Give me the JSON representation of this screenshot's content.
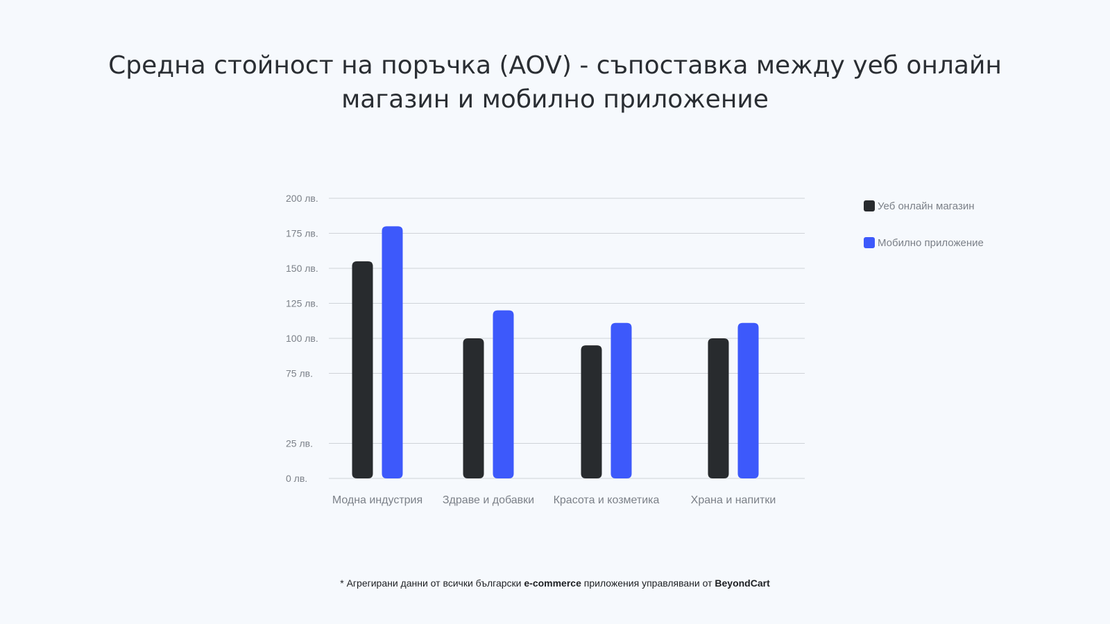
{
  "title_line1": "Средна стойност на поръчка (AOV) - съпоставка между уеб онлайн",
  "title_line2": "магазин и мобилно приложение",
  "footnote": {
    "prefix": "* Агрегирани данни от всички български",
    "brand1": "e-commerce",
    "middle": "приложения управлявани от",
    "brand2": "BeyondCart"
  },
  "colors": {
    "web": "#282b2e",
    "app": "#3d59fb",
    "grid": "#cfd3d8"
  },
  "chart_data": {
    "type": "bar",
    "categories": [
      "Модна индустрия",
      "Здраве и добавки",
      "Красота и козметика",
      "Храна и напитки"
    ],
    "series": [
      {
        "name": "Уеб онлайн магазин",
        "values": [
          155,
          100,
          95,
          100
        ]
      },
      {
        "name": "Мобилно приложение",
        "values": [
          180,
          120,
          111,
          111
        ]
      }
    ],
    "y_ticks": [
      {
        "value": 0,
        "label": "0 лв."
      },
      {
        "value": 25,
        "label": "25 лв."
      },
      {
        "value": 75,
        "label": "75 лв."
      },
      {
        "value": 100,
        "label": "100 лв."
      },
      {
        "value": 125,
        "label": "125 лв."
      },
      {
        "value": 150,
        "label": "150 лв."
      },
      {
        "value": 175,
        "label": "175 лв."
      },
      {
        "value": 200,
        "label": "200 лв."
      }
    ],
    "ylim": [
      0,
      200
    ],
    "xlabel": "",
    "ylabel": "",
    "grid": true,
    "legend_position": "top-right"
  }
}
